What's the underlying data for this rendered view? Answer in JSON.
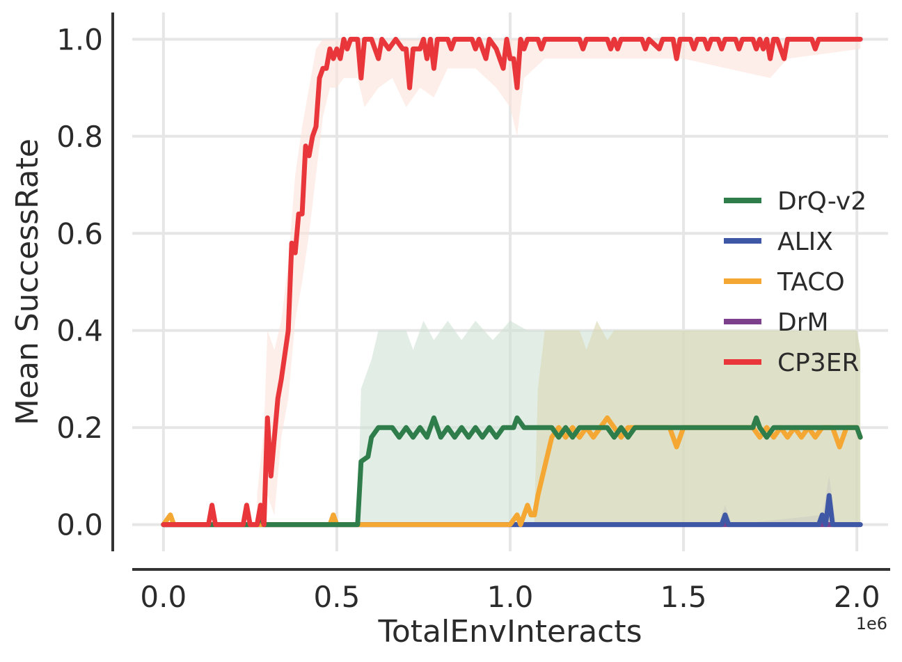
{
  "chart_data": {
    "type": "line",
    "xlabel": "TotalEnvInteracts",
    "ylabel": "Mean SuccessRate",
    "x_scale_label": "1e6",
    "xlim": [
      -0.09,
      2.09
    ],
    "ylim": [
      -0.055,
      1.055
    ],
    "x_ticks": [
      0.0,
      0.5,
      1.0,
      1.5,
      2.0
    ],
    "x_tick_labels": [
      "0.0",
      "0.5",
      "1.0",
      "1.5",
      "2.0"
    ],
    "y_ticks": [
      0.0,
      0.2,
      0.4,
      0.6,
      0.8,
      1.0
    ],
    "y_tick_labels": [
      "0.0",
      "0.2",
      "0.4",
      "0.6",
      "0.8",
      "1.0"
    ],
    "grid": true,
    "legend_position": "center-right",
    "series": [
      {
        "name": "DrQ-v2",
        "color": "#2e7d4a",
        "band_color": "#cfe1d3",
        "points": [
          [
            0.0,
            0.0
          ],
          [
            0.27,
            0.0
          ],
          [
            0.28,
            0.02
          ],
          [
            0.29,
            0.0
          ],
          [
            0.56,
            0.0
          ],
          [
            0.57,
            0.13
          ],
          [
            0.59,
            0.14
          ],
          [
            0.6,
            0.18
          ],
          [
            0.62,
            0.2
          ],
          [
            0.66,
            0.2
          ],
          [
            0.68,
            0.18
          ],
          [
            0.7,
            0.2
          ],
          [
            0.72,
            0.18
          ],
          [
            0.74,
            0.2
          ],
          [
            0.76,
            0.18
          ],
          [
            0.78,
            0.22
          ],
          [
            0.8,
            0.18
          ],
          [
            0.82,
            0.2
          ],
          [
            0.84,
            0.18
          ],
          [
            0.86,
            0.2
          ],
          [
            0.88,
            0.18
          ],
          [
            0.9,
            0.2
          ],
          [
            0.92,
            0.18
          ],
          [
            0.94,
            0.2
          ],
          [
            0.96,
            0.18
          ],
          [
            0.98,
            0.2
          ],
          [
            1.01,
            0.2
          ],
          [
            1.02,
            0.22
          ],
          [
            1.04,
            0.2
          ],
          [
            1.12,
            0.2
          ],
          [
            1.14,
            0.18
          ],
          [
            1.16,
            0.2
          ],
          [
            1.18,
            0.18
          ],
          [
            1.2,
            0.2
          ],
          [
            1.28,
            0.2
          ],
          [
            1.3,
            0.18
          ],
          [
            1.32,
            0.2
          ],
          [
            1.34,
            0.18
          ],
          [
            1.36,
            0.2
          ],
          [
            1.7,
            0.2
          ],
          [
            1.71,
            0.22
          ],
          [
            1.72,
            0.2
          ],
          [
            1.74,
            0.18
          ],
          [
            1.76,
            0.2
          ],
          [
            2.0,
            0.2
          ],
          [
            2.01,
            0.18
          ]
        ],
        "band": [
          [
            0.56,
            0.0,
            0.0
          ],
          [
            0.57,
            0.0,
            0.28
          ],
          [
            0.6,
            0.0,
            0.34
          ],
          [
            0.62,
            0.0,
            0.4
          ],
          [
            0.7,
            0.0,
            0.4
          ],
          [
            0.72,
            0.0,
            0.36
          ],
          [
            0.75,
            0.0,
            0.42
          ],
          [
            0.78,
            0.0,
            0.38
          ],
          [
            0.82,
            0.0,
            0.42
          ],
          [
            0.86,
            0.0,
            0.38
          ],
          [
            0.9,
            0.0,
            0.42
          ],
          [
            0.95,
            0.0,
            0.38
          ],
          [
            1.0,
            0.0,
            0.42
          ],
          [
            1.05,
            0.0,
            0.4
          ],
          [
            1.08,
            0.0,
            0.4
          ],
          [
            2.0,
            0.0,
            0.4
          ],
          [
            2.01,
            0.0,
            0.36
          ]
        ]
      },
      {
        "name": "ALIX",
        "color": "#3f58a6",
        "band_color": "#b7c1dd",
        "points": [
          [
            0.0,
            0.0
          ],
          [
            1.61,
            0.0
          ],
          [
            1.62,
            0.02
          ],
          [
            1.63,
            0.0
          ],
          [
            1.89,
            0.0
          ],
          [
            1.9,
            0.02
          ],
          [
            1.91,
            0.0
          ],
          [
            1.92,
            0.06
          ],
          [
            1.93,
            0.0
          ],
          [
            2.01,
            0.0
          ]
        ],
        "band": [
          [
            1.6,
            0.0,
            0.0
          ],
          [
            1.62,
            0.0,
            0.04
          ],
          [
            1.64,
            0.0,
            0.0
          ],
          [
            1.9,
            0.0,
            0.02
          ],
          [
            1.92,
            0.0,
            0.1
          ],
          [
            1.94,
            0.0,
            0.0
          ]
        ]
      },
      {
        "name": "TACO",
        "color": "#f5a733",
        "band_color": "#dcd7b3",
        "points": [
          [
            0.0,
            0.0
          ],
          [
            0.02,
            0.02
          ],
          [
            0.03,
            0.0
          ],
          [
            0.48,
            0.0
          ],
          [
            0.49,
            0.02
          ],
          [
            0.5,
            0.0
          ],
          [
            1.0,
            0.0
          ],
          [
            1.02,
            0.02
          ],
          [
            1.03,
            0.0
          ],
          [
            1.05,
            0.04
          ],
          [
            1.06,
            0.02
          ],
          [
            1.07,
            0.02
          ],
          [
            1.08,
            0.06
          ],
          [
            1.1,
            0.12
          ],
          [
            1.12,
            0.18
          ],
          [
            1.14,
            0.2
          ],
          [
            1.16,
            0.18
          ],
          [
            1.18,
            0.2
          ],
          [
            1.2,
            0.18
          ],
          [
            1.22,
            0.2
          ],
          [
            1.24,
            0.18
          ],
          [
            1.26,
            0.2
          ],
          [
            1.28,
            0.22
          ],
          [
            1.3,
            0.2
          ],
          [
            1.32,
            0.18
          ],
          [
            1.34,
            0.2
          ],
          [
            1.46,
            0.2
          ],
          [
            1.48,
            0.16
          ],
          [
            1.5,
            0.2
          ],
          [
            1.7,
            0.2
          ],
          [
            1.72,
            0.18
          ],
          [
            1.74,
            0.2
          ],
          [
            1.76,
            0.18
          ],
          [
            1.78,
            0.2
          ],
          [
            1.8,
            0.18
          ],
          [
            1.82,
            0.2
          ],
          [
            1.84,
            0.18
          ],
          [
            1.86,
            0.2
          ],
          [
            1.88,
            0.18
          ],
          [
            1.9,
            0.2
          ],
          [
            1.93,
            0.2
          ],
          [
            1.95,
            0.16
          ],
          [
            1.97,
            0.2
          ],
          [
            2.0,
            0.2
          ],
          [
            2.01,
            0.18
          ]
        ],
        "band": [
          [
            1.07,
            0.0,
            0.02
          ],
          [
            1.08,
            0.0,
            0.28
          ],
          [
            1.1,
            0.0,
            0.4
          ],
          [
            1.2,
            0.0,
            0.4
          ],
          [
            1.22,
            0.0,
            0.36
          ],
          [
            1.25,
            0.0,
            0.42
          ],
          [
            1.28,
            0.0,
            0.38
          ],
          [
            1.3,
            0.0,
            0.4
          ],
          [
            2.0,
            0.0,
            0.4
          ],
          [
            2.01,
            0.0,
            0.36
          ]
        ]
      },
      {
        "name": "DrM",
        "color": "#7b3f8c",
        "band_color": "#d6c3dd",
        "points": [
          [
            0.0,
            0.0
          ],
          [
            2.01,
            0.0
          ]
        ],
        "band": []
      },
      {
        "name": "CP3ER",
        "color": "#e8363a",
        "band_color": "#fbe3da",
        "points": [
          [
            0.0,
            0.0
          ],
          [
            0.13,
            0.0
          ],
          [
            0.14,
            0.04
          ],
          [
            0.15,
            0.0
          ],
          [
            0.23,
            0.0
          ],
          [
            0.24,
            0.04
          ],
          [
            0.25,
            0.0
          ],
          [
            0.27,
            0.0
          ],
          [
            0.28,
            0.04
          ],
          [
            0.29,
            0.0
          ],
          [
            0.3,
            0.22
          ],
          [
            0.31,
            0.1
          ],
          [
            0.32,
            0.18
          ],
          [
            0.33,
            0.26
          ],
          [
            0.34,
            0.3
          ],
          [
            0.36,
            0.4
          ],
          [
            0.37,
            0.58
          ],
          [
            0.38,
            0.56
          ],
          [
            0.39,
            0.64
          ],
          [
            0.4,
            0.64
          ],
          [
            0.41,
            0.78
          ],
          [
            0.42,
            0.76
          ],
          [
            0.43,
            0.8
          ],
          [
            0.44,
            0.82
          ],
          [
            0.45,
            0.92
          ],
          [
            0.46,
            0.94
          ],
          [
            0.47,
            0.94
          ],
          [
            0.48,
            0.98
          ],
          [
            0.49,
            0.96
          ],
          [
            0.5,
            0.98
          ],
          [
            0.51,
            0.96
          ],
          [
            0.52,
            1.0
          ],
          [
            0.53,
            0.98
          ],
          [
            0.54,
            1.0
          ],
          [
            0.56,
            1.0
          ],
          [
            0.57,
            0.92
          ],
          [
            0.58,
            1.0
          ],
          [
            0.6,
            1.0
          ],
          [
            0.62,
            0.96
          ],
          [
            0.63,
            1.0
          ],
          [
            0.65,
            0.98
          ],
          [
            0.67,
            1.0
          ],
          [
            0.69,
            0.98
          ],
          [
            0.7,
            0.98
          ],
          [
            0.71,
            0.9
          ],
          [
            0.72,
            0.98
          ],
          [
            0.74,
            0.98
          ],
          [
            0.75,
            1.0
          ],
          [
            0.76,
            0.96
          ],
          [
            0.77,
            1.0
          ],
          [
            0.78,
            0.94
          ],
          [
            0.79,
            1.0
          ],
          [
            0.82,
            1.0
          ],
          [
            0.83,
            0.98
          ],
          [
            0.84,
            1.0
          ],
          [
            0.89,
            1.0
          ],
          [
            0.9,
            0.98
          ],
          [
            0.91,
            1.0
          ],
          [
            0.93,
            0.96
          ],
          [
            0.94,
            1.0
          ],
          [
            0.96,
            0.98
          ],
          [
            0.98,
            0.94
          ],
          [
            0.99,
            1.0
          ],
          [
            1.0,
            0.96
          ],
          [
            1.01,
            0.96
          ],
          [
            1.02,
            0.9
          ],
          [
            1.03,
            1.0
          ],
          [
            1.04,
            0.98
          ],
          [
            1.05,
            1.0
          ],
          [
            1.08,
            1.0
          ],
          [
            1.09,
            0.98
          ],
          [
            1.1,
            1.0
          ],
          [
            1.2,
            1.0
          ],
          [
            1.21,
            0.98
          ],
          [
            1.22,
            1.0
          ],
          [
            1.28,
            1.0
          ],
          [
            1.29,
            0.98
          ],
          [
            1.3,
            1.0
          ],
          [
            1.31,
            0.98
          ],
          [
            1.32,
            1.0
          ],
          [
            1.38,
            1.0
          ],
          [
            1.39,
            0.98
          ],
          [
            1.4,
            1.0
          ],
          [
            1.43,
            0.98
          ],
          [
            1.44,
            1.0
          ],
          [
            1.47,
            1.0
          ],
          [
            1.48,
            0.96
          ],
          [
            1.49,
            1.0
          ],
          [
            1.52,
            1.0
          ],
          [
            1.53,
            0.98
          ],
          [
            1.54,
            1.0
          ],
          [
            1.56,
            1.0
          ],
          [
            1.57,
            0.98
          ],
          [
            1.58,
            1.0
          ],
          [
            1.6,
            1.0
          ],
          [
            1.61,
            0.98
          ],
          [
            1.62,
            1.0
          ],
          [
            1.65,
            1.0
          ],
          [
            1.66,
            0.98
          ],
          [
            1.67,
            1.0
          ],
          [
            1.7,
            1.0
          ],
          [
            1.71,
            0.98
          ],
          [
            1.72,
            1.0
          ],
          [
            1.73,
            0.98
          ],
          [
            1.74,
            1.0
          ],
          [
            1.75,
            0.96
          ],
          [
            1.76,
            1.0
          ],
          [
            1.77,
            1.0
          ],
          [
            1.78,
            0.98
          ],
          [
            1.79,
            0.96
          ],
          [
            1.8,
            1.0
          ],
          [
            1.87,
            1.0
          ],
          [
            1.88,
            0.98
          ],
          [
            1.89,
            1.0
          ],
          [
            2.01,
            1.0
          ]
        ],
        "band": [
          [
            0.27,
            0.0,
            0.06
          ],
          [
            0.29,
            0.0,
            0.2
          ],
          [
            0.3,
            0.06,
            0.4
          ],
          [
            0.32,
            0.02,
            0.36
          ],
          [
            0.34,
            0.18,
            0.42
          ],
          [
            0.36,
            0.26,
            0.54
          ],
          [
            0.38,
            0.42,
            0.72
          ],
          [
            0.4,
            0.5,
            0.82
          ],
          [
            0.42,
            0.6,
            0.9
          ],
          [
            0.44,
            0.72,
            0.98
          ],
          [
            0.46,
            0.84,
            1.0
          ],
          [
            0.48,
            0.9,
            1.0
          ],
          [
            0.5,
            0.9,
            1.0
          ],
          [
            0.52,
            0.92,
            1.0
          ],
          [
            0.56,
            0.92,
            1.0
          ],
          [
            0.58,
            0.86,
            1.0
          ],
          [
            0.62,
            0.9,
            1.0
          ],
          [
            0.66,
            0.92,
            1.0
          ],
          [
            0.7,
            0.86,
            1.0
          ],
          [
            0.74,
            0.9,
            1.0
          ],
          [
            0.78,
            0.88,
            1.0
          ],
          [
            0.82,
            0.94,
            1.0
          ],
          [
            0.9,
            0.94,
            1.0
          ],
          [
            0.96,
            0.9,
            1.0
          ],
          [
            1.0,
            0.86,
            1.0
          ],
          [
            1.02,
            0.8,
            1.0
          ],
          [
            1.04,
            0.92,
            1.0
          ],
          [
            1.1,
            0.96,
            1.0
          ],
          [
            1.5,
            0.96,
            1.0
          ],
          [
            1.75,
            0.92,
            1.0
          ],
          [
            1.8,
            0.96,
            1.0
          ],
          [
            2.01,
            0.98,
            1.0
          ]
        ]
      }
    ]
  }
}
